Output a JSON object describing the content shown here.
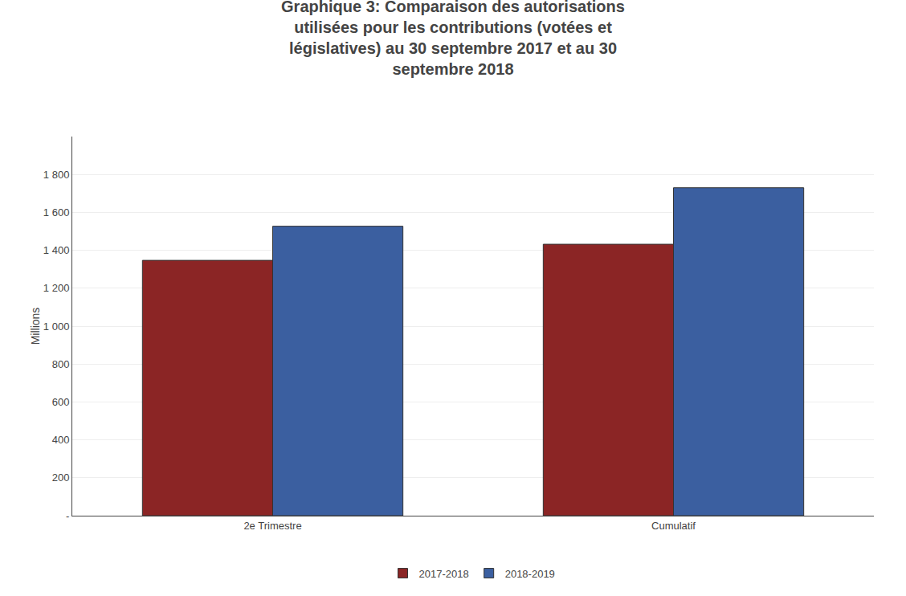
{
  "chart_data": {
    "type": "bar",
    "title": "Graphique 3: Comparaison des autorisations\nutilisées pour les contributions (votées et\nlégislatives) au 30 septembre 2017 et au 30\nseptembre 2018",
    "categories": [
      "2e Trimestre",
      "Cumulatif"
    ],
    "series": [
      {
        "name": "2017-2018",
        "color": "#8B2525",
        "values": [
          1347,
          1432
        ]
      },
      {
        "name": "2018-2019",
        "color": "#3B5FA0",
        "values": [
          1527,
          1730
        ]
      }
    ],
    "ylabel": "Millions",
    "ylim": [
      0,
      2000
    ],
    "yticks": [
      {
        "value": 0,
        "label": "-"
      },
      200,
      400,
      600,
      800,
      {
        "value": 1000,
        "label": "1 000"
      },
      {
        "value": 1200,
        "label": "1 200"
      },
      {
        "value": 1400,
        "label": "1 400"
      },
      {
        "value": 1600,
        "label": "1 600"
      },
      {
        "value": 1800,
        "label": "1 800"
      }
    ],
    "grid": true,
    "legend": "bottom"
  }
}
